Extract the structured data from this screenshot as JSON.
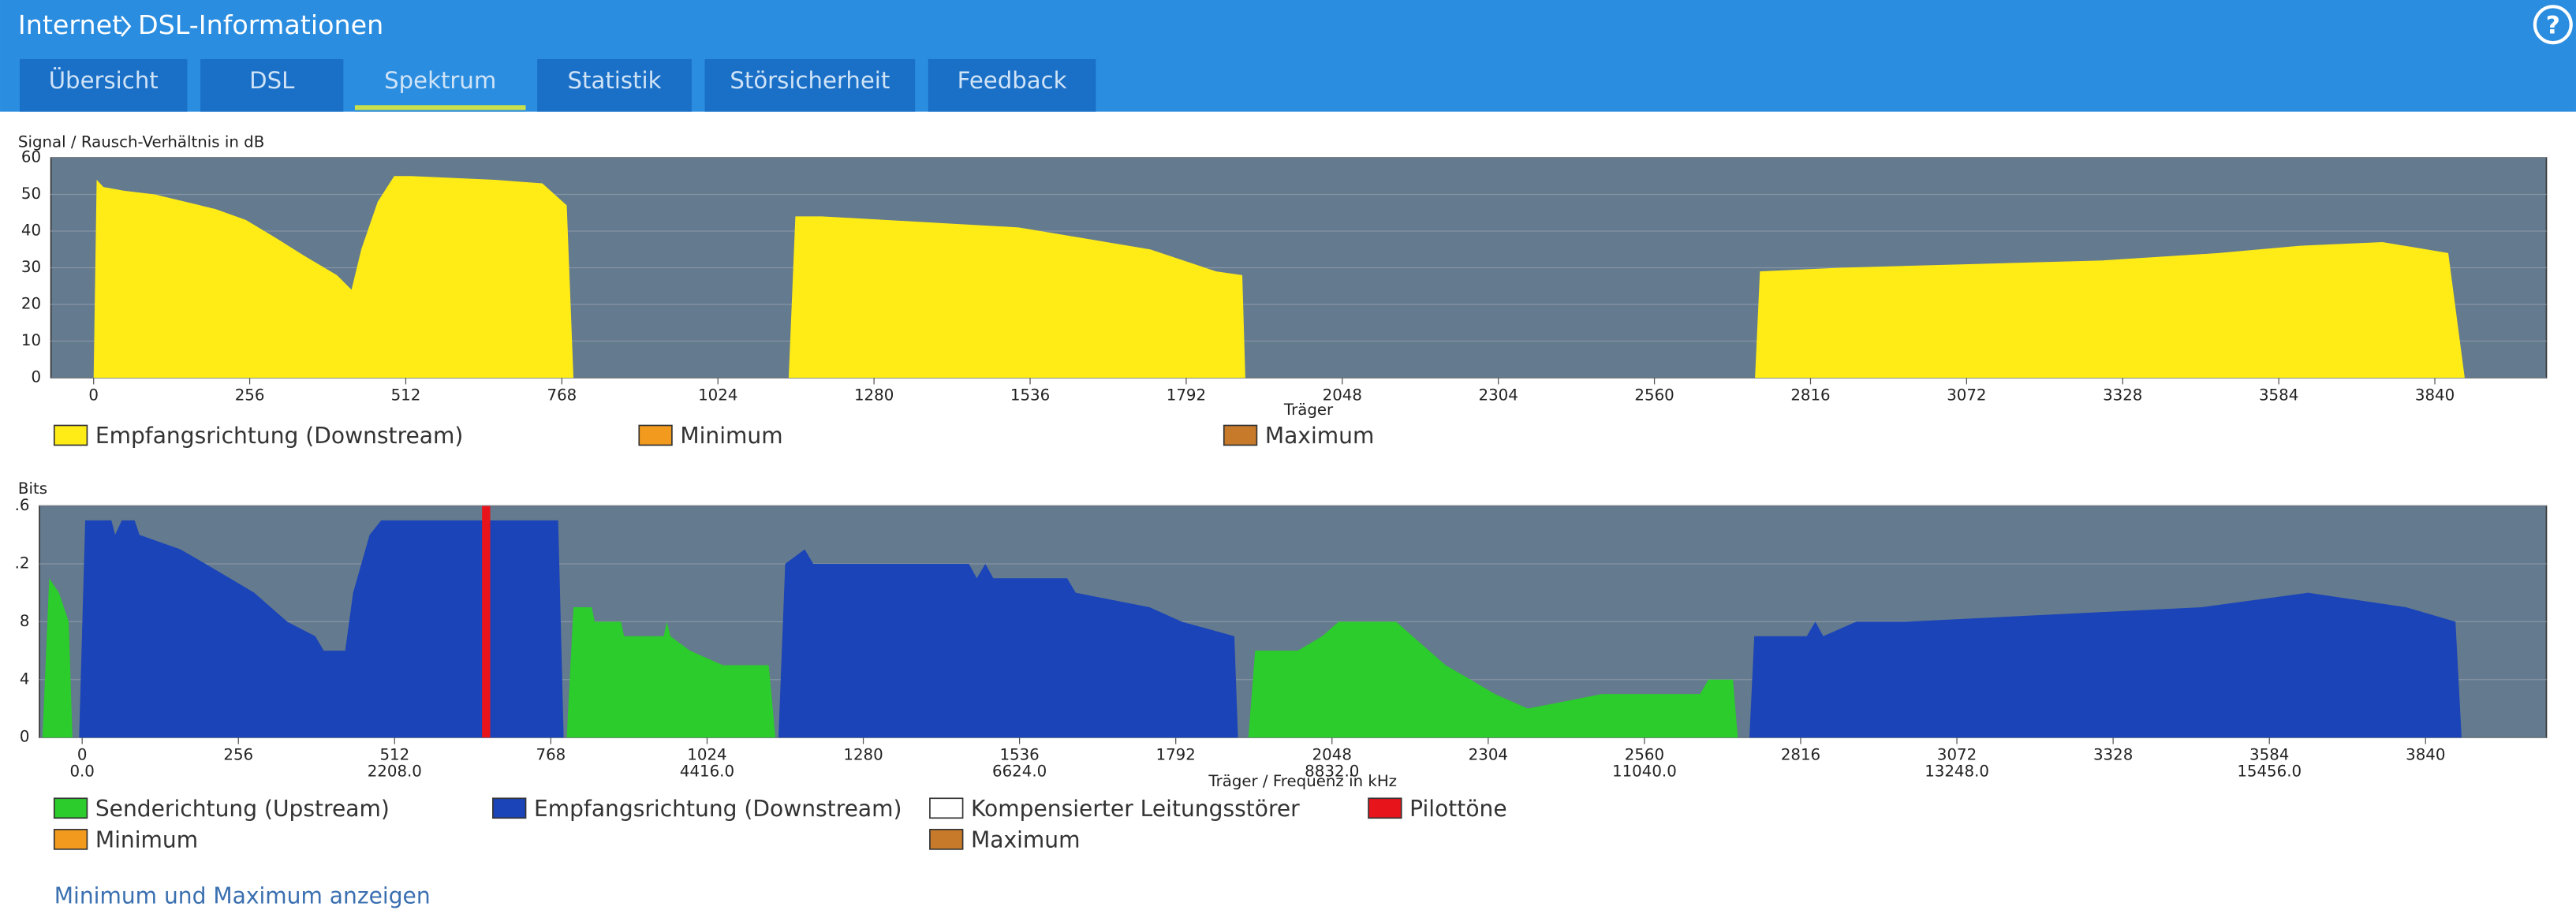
{
  "header": {
    "breadcrumb": [
      "Internet",
      "DSL-Informationen"
    ],
    "help_icon": "?"
  },
  "tabs": [
    "Übersicht",
    "DSL",
    "Spektrum",
    "Statistik",
    "Störsicherheit",
    "Feedback"
  ],
  "active_tab": 2,
  "chart_data": [
    {
      "type": "area",
      "y_label": "Signal / Rausch-Verhältnis in dB",
      "x_label": "Träger",
      "xlim": [
        -70,
        4023
      ],
      "ylim": [
        0,
        60
      ],
      "yticks": [
        0,
        10,
        20,
        30,
        40,
        50,
        60
      ],
      "xticks": [
        0,
        256,
        512,
        768,
        1024,
        1280,
        1536,
        1792,
        2048,
        2304,
        2560,
        2816,
        3072,
        3328,
        3584,
        3840
      ],
      "grid": true,
      "series": [
        {
          "name": "Empfangsrichtung (Downstream)",
          "color": "#ffec17",
          "x": [
            0,
            5,
            16,
            50,
            100,
            150,
            200,
            250,
            300,
            348,
            399,
            423,
            439,
            466,
            493,
            520,
            655,
            736,
            776,
            787,
            960,
            1140,
            1151,
            1194,
            1302,
            1410,
            1517,
            1625,
            1733,
            1841,
            1884,
            1889,
            2300,
            2725,
            2733,
            2865,
            3081,
            3296,
            3485,
            3619,
            3754,
            3862,
            3889
          ],
          "values": [
            0,
            54,
            52,
            51,
            50,
            48,
            46,
            43,
            38,
            33,
            28,
            24,
            35,
            48,
            55,
            55,
            54,
            53,
            47,
            0,
            null,
            0,
            44,
            44,
            43,
            42,
            41,
            38,
            35,
            29,
            28,
            0,
            null,
            0,
            29,
            30,
            31,
            32,
            34,
            36,
            37,
            34,
            0
          ]
        },
        {
          "name": "Minimum",
          "color": "#f29a1d",
          "x": [],
          "values": []
        },
        {
          "name": "Maximum",
          "color": "#c77a2a",
          "x": [],
          "values": []
        }
      ]
    },
    {
      "type": "area",
      "y_label": "Bits",
      "x_label": "Träger / Frequenz in kHz",
      "xlim": [
        -70,
        4038
      ],
      "ylim": [
        0,
        16
      ],
      "yticks": [
        0,
        4,
        8,
        {
          "value": 12,
          "label": ".2"
        },
        {
          "value": 16,
          "label": ".6"
        }
      ],
      "xticks": [
        0,
        256,
        512,
        768,
        1024,
        1280,
        1536,
        1792,
        2048,
        2304,
        2560,
        2816,
        3072,
        3328,
        3584,
        3840
      ],
      "x2lim": [
        -301.875,
        17413.875
      ],
      "x2ticks": [
        {
          "value": 0,
          "label": "0.0"
        },
        {
          "value": 2208,
          "label": "2208.0"
        },
        {
          "value": 4416,
          "label": "4416.0"
        },
        {
          "value": 6624,
          "label": "6624.0"
        },
        {
          "value": 8832,
          "label": "8832.0"
        },
        {
          "value": 11040,
          "label": "11040.0"
        },
        {
          "value": 13248,
          "label": "13248.0"
        },
        {
          "value": 15456,
          "label": "15456.0"
        }
      ],
      "grid": true,
      "series": [
        {
          "name": "Senderichtung (Upstream)",
          "color": "#2bcc2b",
          "x": [
            -65,
            -54,
            -38,
            -22,
            -16,
            400,
            794,
            805,
            835,
            840,
            883,
            888,
            953,
            958,
            964,
            996,
            1050,
            1125,
            1136,
            1500,
            1911,
            1922,
            1992,
            2032,
            2059,
            2153,
            2180,
            2234,
            2275,
            2315,
            2369,
            2490,
            2651,
            2665,
            2705,
            2713
          ],
          "values": [
            0,
            11,
            10,
            8,
            0,
            null,
            0,
            9,
            9,
            8,
            8,
            7,
            7,
            8,
            7,
            6,
            5,
            5,
            0,
            null,
            0,
            6,
            6,
            7,
            8,
            8,
            7,
            5,
            4,
            3,
            2,
            3,
            3,
            4,
            4,
            0
          ]
        },
        {
          "name": "Empfangsrichtung (Downstream)",
          "color": "#1a44b8",
          "x": [
            -5,
            5,
            48,
            54,
            65,
            86,
            94,
            161,
            202,
            242,
            282,
            336,
            382,
            396,
            431,
            444,
            471,
            490,
            552,
            780,
            789,
            960,
            1141,
            1152,
            1184,
            1198,
            1453,
            1466,
            1480,
            1493,
            1614,
            1628,
            1749,
            1802,
            1888,
            1894,
            2300,
            2732,
            2740,
            2826,
            2840,
            2853,
            2907,
            2988,
            3473,
            3647,
            3808,
            3889,
            3899
          ],
          "values": [
            0,
            15,
            15,
            14,
            15,
            15,
            14,
            13,
            12,
            11,
            10,
            8,
            7,
            6,
            6,
            10,
            14,
            15,
            15,
            15,
            0,
            null,
            0,
            12,
            13,
            12,
            12,
            11,
            12,
            11,
            11,
            10,
            9,
            8,
            7,
            0,
            null,
            0,
            7,
            7,
            8,
            7,
            8,
            8,
            9,
            10,
            9,
            8,
            0
          ]
        },
        {
          "name": "Kompensierter Leitungsstörer",
          "color": "#ffffff",
          "x": [],
          "values": []
        },
        {
          "name": "Pilottöne",
          "color": "#e8141c",
          "mark": "bar",
          "x": [
            662
          ],
          "values": [
            16
          ]
        },
        {
          "name": "Minimum",
          "color": "#f29a1d",
          "x": [],
          "values": []
        },
        {
          "name": "Maximum",
          "color": "#c77a2a",
          "x": [],
          "values": []
        }
      ]
    }
  ],
  "link": "Minimum und Maximum anzeigen"
}
